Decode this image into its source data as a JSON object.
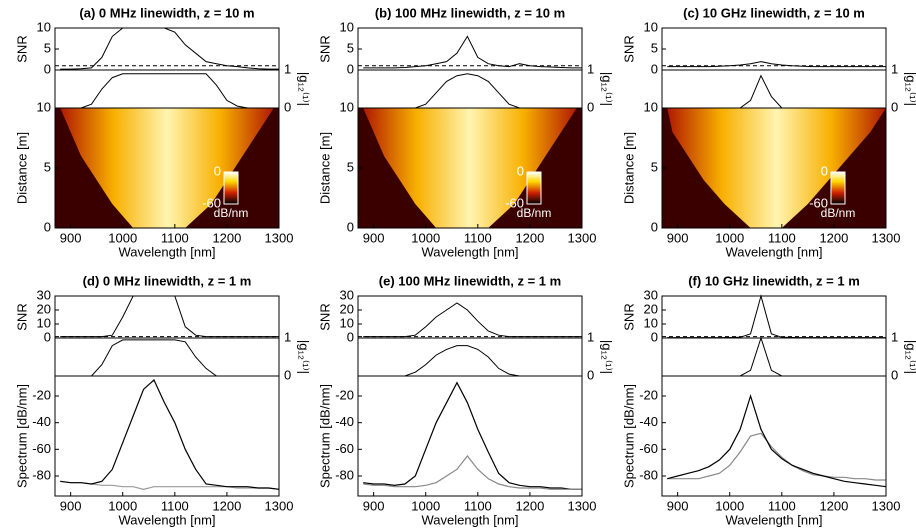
{
  "chart_data": [
    {
      "type": "heatmap",
      "title": "(a) 0 MHz linewidth, z = 10 m",
      "xlabel": "Wavelength [nm]",
      "x": [
        880,
        900,
        920,
        940,
        960,
        980,
        1000,
        1020,
        1040,
        1060,
        1080,
        1100,
        1120,
        1140,
        1160,
        1180,
        1200,
        1220,
        1240,
        1260,
        1280,
        1300
      ],
      "xlim": [
        870,
        1300
      ],
      "xticks": [
        900,
        1000,
        1100,
        1200,
        1300
      ],
      "snr": {
        "ylabel": "SNR",
        "ylim": [
          0,
          10
        ],
        "yticks": [
          0,
          5,
          10
        ],
        "threshold": 1,
        "color": "#000000",
        "values": [
          0.2,
          0.2,
          0.3,
          0.5,
          3,
          8,
          10,
          10,
          10,
          10,
          10,
          9,
          6,
          4,
          2,
          1.5,
          1,
          0.8,
          0.5,
          0.3,
          0.2,
          0.2
        ]
      },
      "coherence": {
        "ylabel": "|g₁₂⁽¹⁾|",
        "ylim": [
          0,
          1
        ],
        "yticks": [
          0,
          1
        ],
        "color": "#000000",
        "values": [
          0,
          0,
          0,
          0.1,
          0.5,
          0.8,
          0.9,
          0.9,
          0.9,
          0.9,
          0.9,
          0.9,
          0.9,
          0.9,
          0.9,
          0.6,
          0.2,
          0.05,
          0,
          0,
          0,
          0
        ]
      },
      "main": {
        "ylabel": "Distance [m]",
        "ylim": [
          0,
          10
        ],
        "yticks": [
          0,
          5,
          10
        ],
        "distance": [
          0,
          2,
          4,
          6,
          8,
          10
        ],
        "edge_low": [
          1020,
          980,
          950,
          920,
          900,
          880
        ],
        "edge_high": [
          1120,
          1170,
          1200,
          1230,
          1260,
          1290
        ],
        "clim": [
          -60,
          0
        ],
        "colorbar_ticks": [
          0,
          -60
        ],
        "colorbar_label": "dB/nm"
      }
    },
    {
      "type": "heatmap",
      "title": "(b) 100 MHz linewidth, z = 10 m",
      "xlabel": "Wavelength [nm]",
      "x": [
        880,
        900,
        920,
        940,
        960,
        980,
        1000,
        1020,
        1040,
        1060,
        1080,
        1100,
        1120,
        1140,
        1160,
        1180,
        1200,
        1220,
        1240,
        1260,
        1280,
        1300
      ],
      "xlim": [
        870,
        1300
      ],
      "xticks": [
        900,
        1000,
        1100,
        1200,
        1300
      ],
      "snr": {
        "ylabel": "SNR",
        "ylim": [
          0,
          10
        ],
        "yticks": [
          0,
          5,
          10
        ],
        "threshold": 1,
        "color": "#000000",
        "values": [
          0.5,
          0.5,
          0.5,
          0.5,
          0.6,
          0.8,
          1,
          1.5,
          2,
          4,
          8,
          3,
          1.5,
          1,
          0.8,
          1.5,
          1,
          0.8,
          0.7,
          0.6,
          0.5,
          0.5
        ]
      },
      "coherence": {
        "ylabel": "|g₁₂⁽¹⁾|",
        "ylim": [
          0,
          1
        ],
        "yticks": [
          0,
          1
        ],
        "color": "#000000",
        "values": [
          0,
          0,
          0,
          0,
          0,
          0,
          0.1,
          0.4,
          0.7,
          0.85,
          0.9,
          0.85,
          0.7,
          0.4,
          0.1,
          0,
          0,
          0,
          0,
          0,
          0,
          0
        ]
      },
      "main": {
        "ylabel": "Distance [m]",
        "ylim": [
          0,
          10
        ],
        "yticks": [
          0,
          5,
          10
        ],
        "distance": [
          0,
          2,
          4,
          6,
          8,
          10
        ],
        "edge_low": [
          1020,
          980,
          950,
          920,
          900,
          880
        ],
        "edge_high": [
          1120,
          1170,
          1200,
          1230,
          1260,
          1290
        ],
        "clim": [
          -60,
          0
        ],
        "colorbar_ticks": [
          0,
          -60
        ],
        "colorbar_label": "dB/nm"
      }
    },
    {
      "type": "heatmap",
      "title": "(c) 10 GHz linewidth, z = 10 m",
      "xlabel": "Wavelength [nm]",
      "x": [
        880,
        900,
        920,
        940,
        960,
        980,
        1000,
        1020,
        1040,
        1060,
        1080,
        1100,
        1120,
        1140,
        1160,
        1180,
        1200,
        1220,
        1240,
        1260,
        1280,
        1300
      ],
      "xlim": [
        870,
        1300
      ],
      "xticks": [
        900,
        1000,
        1100,
        1200,
        1300
      ],
      "snr": {
        "ylabel": "SNR",
        "ylim": [
          0,
          10
        ],
        "yticks": [
          0,
          5,
          10
        ],
        "threshold": 1,
        "color": "#000000",
        "values": [
          0.8,
          0.8,
          0.8,
          0.8,
          0.8,
          0.9,
          1,
          1.2,
          1.5,
          2,
          1.5,
          1.2,
          1,
          0.9,
          0.8,
          0.8,
          0.8,
          0.8,
          0.8,
          0.8,
          0.8,
          0.8
        ]
      },
      "coherence": {
        "ylabel": "|g₁₂⁽¹⁾|",
        "ylim": [
          0,
          1
        ],
        "yticks": [
          0,
          1
        ],
        "color": "#000000",
        "values": [
          0,
          0,
          0,
          0,
          0,
          0,
          0,
          0,
          0.2,
          0.85,
          0.3,
          0,
          0,
          0,
          0,
          0,
          0,
          0,
          0,
          0,
          0,
          0
        ]
      },
      "main": {
        "ylabel": "Distance [m]",
        "ylim": [
          0,
          10
        ],
        "yticks": [
          0,
          5,
          10
        ],
        "distance": [
          0,
          2,
          4,
          6,
          8,
          10
        ],
        "edge_low": [
          1040,
          990,
          950,
          920,
          890,
          880
        ],
        "edge_high": [
          1100,
          1150,
          1190,
          1230,
          1270,
          1300
        ],
        "clim": [
          -60,
          0
        ],
        "colorbar_ticks": [
          0,
          -60
        ],
        "colorbar_label": "dB/nm"
      }
    },
    {
      "type": "line",
      "title": "(d) 0 MHz linewidth, z = 1 m",
      "xlabel": "Wavelength [nm]",
      "x": [
        880,
        900,
        920,
        940,
        960,
        980,
        1000,
        1020,
        1040,
        1060,
        1080,
        1100,
        1120,
        1140,
        1160,
        1180,
        1200,
        1220,
        1240,
        1260,
        1280,
        1300
      ],
      "xlim": [
        870,
        1300
      ],
      "xticks": [
        900,
        1000,
        1100,
        1200,
        1300
      ],
      "snr": {
        "ylabel": "SNR",
        "ylim": [
          0,
          30
        ],
        "yticks": [
          0,
          10,
          20,
          30
        ],
        "threshold": 1,
        "color": "#000000",
        "values": [
          1,
          1,
          1,
          1,
          1,
          2,
          15,
          30,
          30,
          30,
          30,
          30,
          8,
          2,
          1,
          1,
          1,
          1,
          1,
          1,
          1,
          1
        ]
      },
      "coherence": {
        "ylabel": "|g₁₂⁽¹⁾|",
        "ylim": [
          0,
          1
        ],
        "yticks": [
          0,
          1
        ],
        "color": "#000000",
        "values": [
          0,
          0,
          0,
          0,
          0.3,
          0.8,
          0.95,
          0.95,
          0.95,
          0.95,
          0.95,
          0.95,
          0.9,
          0.5,
          0.2,
          0,
          0,
          0,
          0,
          0,
          0,
          0
        ]
      },
      "main": {
        "ylabel": "Spectrum [dB/nm]",
        "ylim": [
          -95,
          -5
        ],
        "yticks": [
          -80,
          -60,
          -40,
          -20
        ],
        "series": [
          {
            "color": "#999999",
            "values": [
              -84,
              -85,
              -85,
              -86,
              -87,
              -87,
              -88,
              -88,
              -90,
              -88,
              -88,
              -88,
              -88,
              -88,
              -88,
              -88,
              -88,
              -89,
              -89,
              -89,
              -89,
              -90
            ]
          },
          {
            "color": "#000000",
            "values": [
              -84,
              -85,
              -85,
              -86,
              -84,
              -75,
              -55,
              -35,
              -15,
              -8,
              -25,
              -40,
              -60,
              -75,
              -86,
              -87,
              -88,
              -88,
              -88,
              -89,
              -89,
              -90
            ]
          }
        ]
      }
    },
    {
      "type": "line",
      "title": "(e) 100 MHz linewidth, z = 1 m",
      "xlabel": "Wavelength [nm]",
      "x": [
        880,
        900,
        920,
        940,
        960,
        980,
        1000,
        1020,
        1040,
        1060,
        1080,
        1100,
        1120,
        1140,
        1160,
        1180,
        1200,
        1220,
        1240,
        1260,
        1280,
        1300
      ],
      "xlim": [
        870,
        1300
      ],
      "xticks": [
        900,
        1000,
        1100,
        1200,
        1300
      ],
      "snr": {
        "ylabel": "SNR",
        "ylim": [
          0,
          30
        ],
        "yticks": [
          0,
          10,
          20,
          30
        ],
        "threshold": 1,
        "color": "#000000",
        "values": [
          1,
          1,
          1,
          1,
          1,
          2,
          8,
          15,
          20,
          25,
          20,
          12,
          5,
          2,
          1,
          1,
          1,
          1,
          1,
          1,
          1,
          1
        ]
      },
      "coherence": {
        "ylabel": "|g₁₂⁽¹⁾|",
        "ylim": [
          0,
          1
        ],
        "yticks": [
          0,
          1
        ],
        "color": "#000000",
        "values": [
          0,
          0,
          0,
          0,
          0,
          0.1,
          0.3,
          0.55,
          0.7,
          0.8,
          0.8,
          0.7,
          0.5,
          0.2,
          0.05,
          0,
          0,
          0,
          0,
          0,
          0,
          0
        ]
      },
      "main": {
        "ylabel": "Spectrum [dB/nm]",
        "ylim": [
          -95,
          -5
        ],
        "yticks": [
          -80,
          -60,
          -40,
          -20
        ],
        "series": [
          {
            "color": "#000000",
            "values": [
              -85,
              -86,
              -86,
              -87,
              -86,
              -80,
              -60,
              -40,
              -25,
              -10,
              -25,
              -45,
              -62,
              -78,
              -85,
              -87,
              -88,
              -88,
              -89,
              -89,
              -90,
              -90
            ]
          },
          {
            "color": "#888888",
            "values": [
              -86,
              -87,
              -87,
              -88,
              -88,
              -88,
              -87,
              -85,
              -80,
              -75,
              -65,
              -75,
              -82,
              -86,
              -88,
              -89,
              -89,
              -89,
              -90,
              -90,
              -90,
              -90
            ]
          }
        ]
      }
    },
    {
      "type": "line",
      "title": "(f) 10 GHz linewidth, z = 1 m",
      "xlabel": "Wavelength [nm]",
      "x": [
        880,
        900,
        920,
        940,
        960,
        980,
        1000,
        1020,
        1040,
        1060,
        1080,
        1100,
        1120,
        1140,
        1160,
        1180,
        1200,
        1220,
        1240,
        1260,
        1280,
        1300
      ],
      "xlim": [
        870,
        1300
      ],
      "xticks": [
        900,
        1000,
        1100,
        1200,
        1300
      ],
      "snr": {
        "ylabel": "SNR",
        "ylim": [
          0,
          30
        ],
        "yticks": [
          0,
          10,
          20,
          30
        ],
        "threshold": 1,
        "color": "#000000",
        "values": [
          0.3,
          0.3,
          0.3,
          0.3,
          0.3,
          0.3,
          0.4,
          0.5,
          3,
          30,
          3,
          0.5,
          0.4,
          0.3,
          0.3,
          0.3,
          0.3,
          0.3,
          0.3,
          0.3,
          0.3,
          0.3
        ]
      },
      "coherence": {
        "ylabel": "|g₁₂⁽¹⁾|",
        "ylim": [
          0,
          1
        ],
        "yticks": [
          0,
          1
        ],
        "color": "#000000",
        "values": [
          0,
          0,
          0,
          0,
          0,
          0,
          0,
          0,
          0.15,
          1,
          0.15,
          0,
          0,
          0,
          0,
          0,
          0,
          0,
          0,
          0,
          0,
          0
        ]
      },
      "main": {
        "ylabel": "Spectrum [dB/nm]",
        "ylim": [
          -95,
          -5
        ],
        "yticks": [
          -80,
          -60,
          -40,
          -20
        ],
        "series": [
          {
            "color": "#888888",
            "values": [
              -82,
              -82,
              -82,
              -82,
              -80,
              -78,
              -72,
              -62,
              -50,
              -48,
              -58,
              -66,
              -72,
              -76,
              -79,
              -80,
              -81,
              -81,
              -82,
              -82,
              -83,
              -83
            ]
          },
          {
            "color": "#000000",
            "values": [
              -82,
              -80,
              -78,
              -76,
              -73,
              -68,
              -60,
              -45,
              -20,
              -45,
              -60,
              -67,
              -72,
              -75,
              -78,
              -80,
              -82,
              -84,
              -85,
              -86,
              -87,
              -88
            ]
          }
        ]
      }
    }
  ]
}
